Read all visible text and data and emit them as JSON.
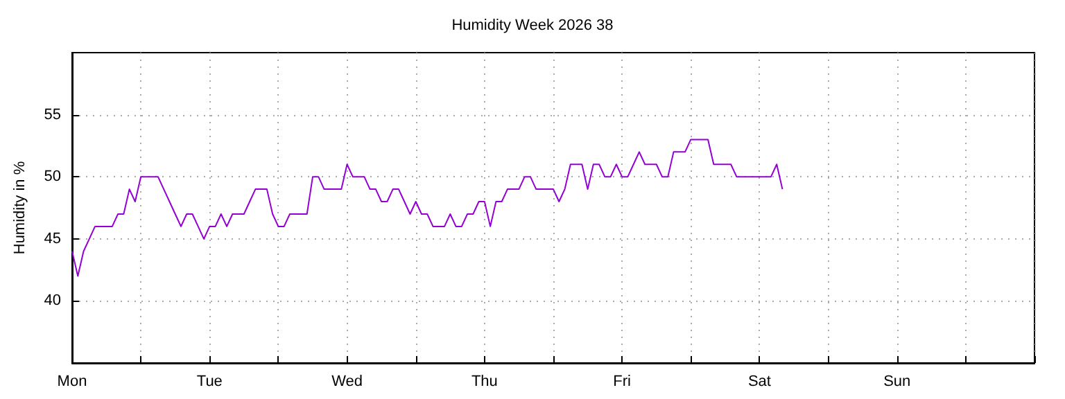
{
  "chart_data": {
    "type": "line",
    "title": "Humidity Week 2026 38",
    "ylabel": "Humidity in %",
    "categories": [
      "Mon",
      null,
      null,
      null,
      null,
      null,
      null,
      null,
      null,
      null,
      null,
      null,
      null,
      null,
      null,
      null,
      null,
      null,
      null,
      null,
      null,
      null,
      null,
      null,
      "Tue",
      null,
      null,
      null,
      null,
      null,
      null,
      null,
      null,
      null,
      null,
      null,
      null,
      null,
      null,
      null,
      null,
      null,
      null,
      null,
      null,
      null,
      null,
      null,
      "Wed",
      null,
      null,
      null,
      null,
      null,
      null,
      null,
      null,
      null,
      null,
      null,
      null,
      null,
      null,
      null,
      null,
      null,
      null,
      null,
      null,
      null,
      null,
      null,
      "Thu",
      null,
      null,
      null,
      null,
      null,
      null,
      null,
      null,
      null,
      null,
      null,
      null,
      null,
      null,
      null,
      null,
      null,
      null,
      null,
      null,
      null,
      null,
      null,
      "Fri",
      null,
      null,
      null,
      null,
      null,
      null,
      null,
      null,
      null,
      null,
      null,
      null,
      null,
      null,
      null,
      null,
      null,
      null,
      null,
      null,
      null,
      null,
      null,
      "Sat",
      null,
      null,
      null,
      null,
      null,
      null,
      null,
      null,
      null,
      null,
      null,
      null,
      null,
      null,
      null,
      null,
      null,
      null,
      null,
      null,
      null,
      null,
      null,
      "Sun",
      null,
      null,
      null,
      null,
      null,
      null,
      null,
      null,
      null,
      null,
      null,
      null,
      null,
      null,
      null,
      null,
      null,
      null,
      null,
      null,
      null,
      null,
      null,
      null
    ],
    "ylim": [
      35,
      60
    ],
    "yticks": [
      40,
      45,
      50,
      55
    ],
    "grid": true,
    "marker": "none",
    "line_style": "solid",
    "series": [
      {
        "color": "#9400d3",
        "values": [
          44,
          42,
          44,
          45,
          46,
          46,
          46,
          46,
          47,
          47,
          49,
          48,
          50,
          50,
          50,
          50,
          49,
          48,
          47,
          46,
          47,
          47,
          46,
          45,
          46,
          46,
          47,
          46,
          47,
          47,
          47,
          48,
          49,
          49,
          49,
          47,
          46,
          46,
          47,
          47,
          47,
          47,
          50,
          50,
          49,
          49,
          49,
          49,
          51,
          50,
          50,
          50,
          49,
          49,
          48,
          48,
          49,
          49,
          48,
          47,
          48,
          47,
          47,
          46,
          46,
          46,
          47,
          46,
          46,
          47,
          47,
          48,
          48,
          46,
          48,
          48,
          49,
          49,
          49,
          50,
          50,
          49,
          49,
          49,
          49,
          48,
          49,
          51,
          51,
          51,
          49,
          51,
          51,
          50,
          50,
          51,
          50,
          50,
          51,
          52,
          51,
          51,
          51,
          50,
          50,
          52,
          52,
          52,
          53,
          53,
          53,
          53,
          51,
          51,
          51,
          51,
          50,
          50,
          50,
          50,
          50,
          50,
          50,
          51,
          49,
          null,
          null,
          null,
          null,
          null,
          null,
          null,
          null,
          null,
          null,
          null,
          null,
          null,
          null,
          null,
          null,
          null,
          null,
          null,
          null,
          null,
          null,
          null,
          null,
          null,
          null,
          null,
          null,
          null,
          null,
          null,
          null,
          null,
          null,
          null,
          null,
          null,
          null,
          null,
          null,
          null,
          null,
          null,
          null
        ]
      }
    ]
  }
}
